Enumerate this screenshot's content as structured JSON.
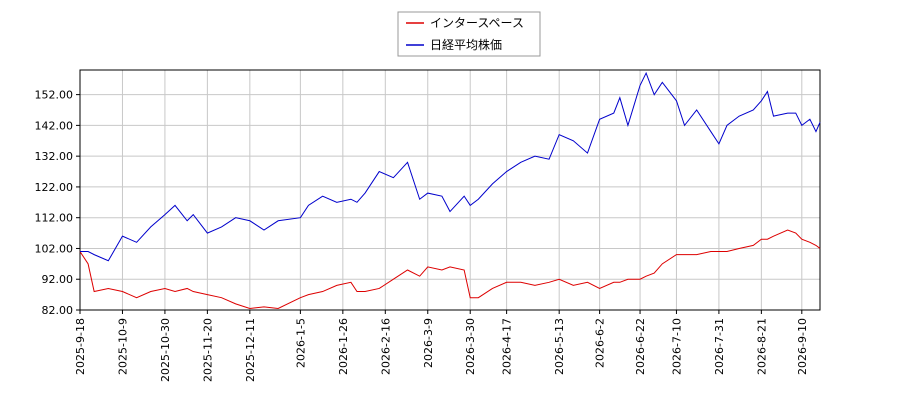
{
  "chart_data": {
    "type": "line",
    "x": [
      "2025-9-18",
      "2025-9-22",
      "2025-9-25",
      "2025-10-2",
      "2025-10-9",
      "2025-10-16",
      "2025-10-23",
      "2025-10-30",
      "2025-11-4",
      "2025-11-10",
      "2025-11-13",
      "2025-11-20",
      "2025-11-27",
      "2025-12-4",
      "2025-12-11",
      "2025-12-18",
      "2025-12-25",
      "2026-1-5",
      "2026-1-9",
      "2026-1-16",
      "2026-1-23",
      "2026-1-30",
      "2026-2-2",
      "2026-2-6",
      "2026-2-13",
      "2026-2-20",
      "2026-2-27",
      "2026-3-5",
      "2026-3-9",
      "2026-3-16",
      "2026-3-20",
      "2026-3-27",
      "2026-3-30",
      "2026-4-3",
      "2026-4-10",
      "2026-4-17",
      "2026-4-24",
      "2026-5-1",
      "2026-5-8",
      "2026-5-13",
      "2026-5-20",
      "2026-5-27",
      "2026-6-2",
      "2026-6-9",
      "2026-6-12",
      "2026-6-16",
      "2026-6-22",
      "2026-6-25",
      "2026-6-29",
      "2026-7-3",
      "2026-7-10",
      "2026-7-14",
      "2026-7-20",
      "2026-7-27",
      "2026-7-31",
      "2026-8-4",
      "2026-8-10",
      "2026-8-17",
      "2026-8-21",
      "2026-8-24",
      "2026-8-27",
      "2026-9-3",
      "2026-9-7",
      "2026-9-10",
      "2026-9-14",
      "2026-9-17",
      "2026-9-19"
    ],
    "series": [
      {
        "name": "インタースペース",
        "color": "#dd0000",
        "values": [
          101,
          97,
          88,
          89,
          88,
          86,
          88,
          89,
          88,
          89,
          88,
          87,
          86,
          84,
          82.5,
          83,
          82.5,
          86,
          87,
          88,
          90,
          91,
          88,
          88,
          89,
          92,
          95,
          93,
          96,
          95,
          96,
          95,
          86,
          86,
          89,
          91,
          91,
          90,
          91,
          92,
          90,
          91,
          89,
          91,
          91,
          92,
          92,
          93,
          94,
          97,
          100,
          100,
          100,
          101,
          101,
          101,
          102,
          103,
          105,
          105,
          106,
          108,
          107,
          105,
          104,
          103,
          102
        ]
      },
      {
        "name": "日経平均株価",
        "color": "#0000cc",
        "values": [
          101,
          101,
          100,
          98,
          106,
          104,
          109,
          113,
          116,
          111,
          113,
          107,
          109,
          112,
          111,
          108,
          111,
          112,
          116,
          119,
          117,
          118,
          117,
          120,
          127,
          125,
          130,
          118,
          120,
          119,
          114,
          119,
          116,
          118,
          123,
          127,
          130,
          132,
          131,
          139,
          137,
          133,
          144,
          146,
          151,
          142,
          155,
          159,
          152,
          156,
          150,
          142,
          147,
          140,
          136,
          142,
          145,
          147,
          150,
          153,
          145,
          146,
          146,
          142,
          144,
          140,
          143
        ]
      }
    ],
    "xlim": [
      "2025-9-18",
      "2026-9-19"
    ],
    "xticks": [
      "2025-9-18",
      "2025-10-9",
      "2025-10-30",
      "2025-11-20",
      "2025-12-11",
      "2026-1-5",
      "2026-1-26",
      "2026-2-16",
      "2026-3-9",
      "2026-3-30",
      "2026-4-17",
      "2026-5-13",
      "2026-6-2",
      "2026-6-22",
      "2026-7-10",
      "2026-7-31",
      "2026-8-21",
      "2026-9-10"
    ],
    "ylim": [
      82,
      160
    ],
    "yticks": [
      {
        "value": 82,
        "label": "82.00"
      },
      {
        "value": 92,
        "label": "92.00"
      },
      {
        "value": 102,
        "label": "102.00"
      },
      {
        "value": 112,
        "label": "112.00"
      },
      {
        "value": 122,
        "label": "122.00"
      },
      {
        "value": 132,
        "label": "132.00"
      },
      {
        "value": 142,
        "label": "142.00"
      },
      {
        "value": 152,
        "label": "152.00"
      }
    ],
    "grid": true,
    "legend": "top"
  }
}
